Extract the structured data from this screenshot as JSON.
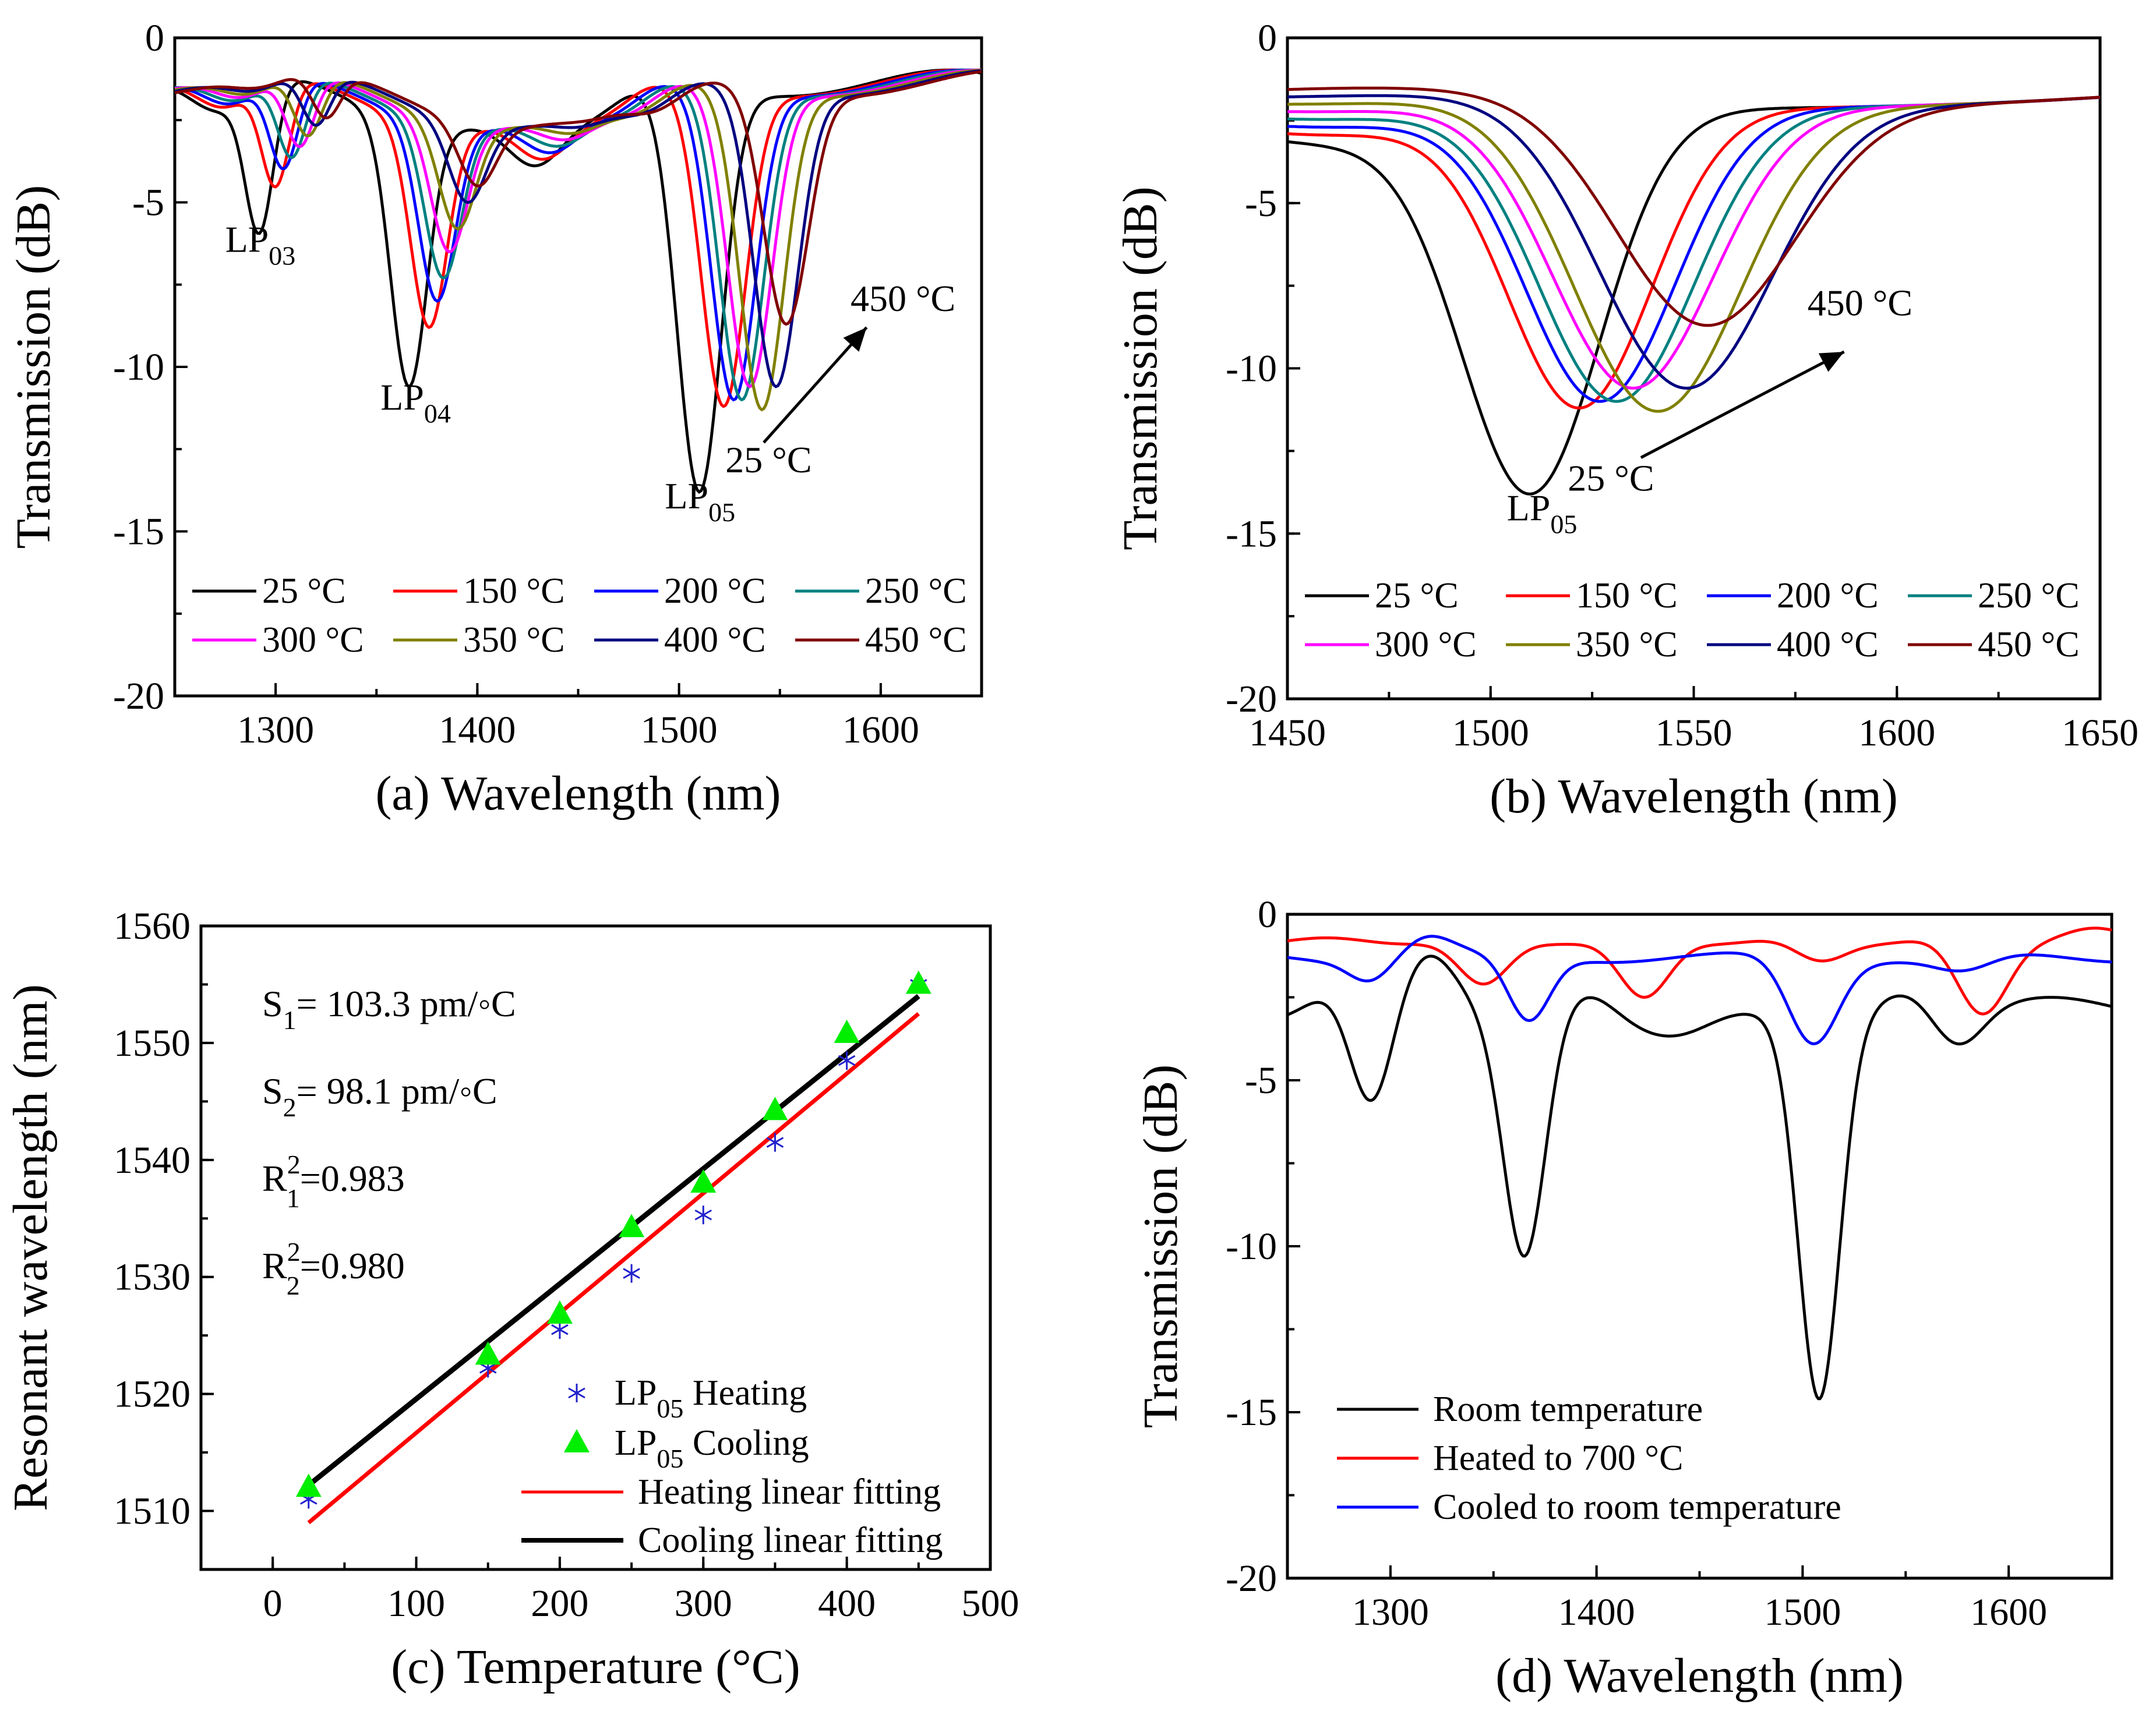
{
  "chart_data": [
    {
      "type": "line",
      "panel": "(a)",
      "xlabel": "(a) Wavelength (nm)",
      "ylabel": "Transmission (dB)",
      "xlim": [
        1250,
        1650
      ],
      "ylim": [
        -20,
        0
      ],
      "xticks": [
        1300,
        1400,
        1500,
        1600
      ],
      "yticks": [
        0,
        -5,
        -10,
        -15,
        -20
      ],
      "ytick_labels": [
        "0",
        "-5",
        "-10",
        "-15",
        "-20"
      ],
      "legend": "bottom, 2 rows x 4 columns",
      "series": [
        {
          "name": "25 °C",
          "color": "#000000",
          "dips": [
            [
              1292,
              -5.5
            ],
            [
              1366,
              -10.6
            ],
            [
              1510,
              -13.8
            ]
          ]
        },
        {
          "name": "150 °C",
          "color": "#ff0000",
          "dips": [
            [
              1300,
              -4.3
            ],
            [
              1376,
              -8.8
            ],
            [
              1522,
              -11.2
            ]
          ]
        },
        {
          "name": "200 °C",
          "color": "#0000ff",
          "dips": [
            [
              1304,
              -3.8
            ],
            [
              1380,
              -8.0
            ],
            [
              1527,
              -11.0
            ]
          ]
        },
        {
          "name": "250 °C",
          "color": "#008080",
          "dips": [
            [
              1308,
              -3.5
            ],
            [
              1383,
              -7.3
            ],
            [
              1531,
              -11.0
            ]
          ]
        },
        {
          "name": "300 °C",
          "color": "#ff00ff",
          "dips": [
            [
              1312,
              -3.2
            ],
            [
              1386,
              -6.5
            ],
            [
              1535,
              -10.6
            ]
          ]
        },
        {
          "name": "350 °C",
          "color": "#808000",
          "dips": [
            [
              1316,
              -2.9
            ],
            [
              1390,
              -5.8
            ],
            [
              1541,
              -11.3
            ]
          ]
        },
        {
          "name": "400 °C",
          "color": "#000080",
          "dips": [
            [
              1320,
              -2.6
            ],
            [
              1395,
              -5.0
            ],
            [
              1548,
              -10.6
            ]
          ]
        },
        {
          "name": "450 °C",
          "color": "#800000",
          "dips": [
            [
              1325,
              -2.4
            ],
            [
              1400,
              -4.5
            ],
            [
              1553,
              -8.7
            ]
          ]
        }
      ],
      "annotations": [
        {
          "text": "LP",
          "sub": "03",
          "x": 1275,
          "y": -6.4
        },
        {
          "text": "LP",
          "sub": "04",
          "x": 1352,
          "y": -11.3
        },
        {
          "text": "LP",
          "sub": "05",
          "x": 1493,
          "y": -14.3
        },
        {
          "text": "25 °C",
          "x": 1528,
          "y": -13.2
        },
        {
          "text": "450 °C",
          "x": 1585,
          "y": -8.3
        }
      ]
    },
    {
      "type": "line",
      "panel": "(b)",
      "xlabel": "(b) Wavelength (nm)",
      "ylabel": "Transmission (dB)",
      "xlim": [
        1450,
        1650
      ],
      "ylim": [
        -20,
        0
      ],
      "xticks": [
        1450,
        1500,
        1550,
        1600,
        1650
      ],
      "yticks": [
        0,
        -5,
        -10,
        -15,
        -20
      ],
      "ytick_labels": [
        "0",
        "-5",
        "-10",
        "-15",
        "-20"
      ],
      "legend": "bottom, 2 rows x 4 columns",
      "series": [
        {
          "name": "25 °C",
          "color": "#000000",
          "dip": [
            1510,
            -13.8
          ]
        },
        {
          "name": "150 °C",
          "color": "#ff0000",
          "dip": [
            1522,
            -11.2
          ]
        },
        {
          "name": "200 °C",
          "color": "#0000ff",
          "dip": [
            1527,
            -11.0
          ]
        },
        {
          "name": "250 °C",
          "color": "#008080",
          "dip": [
            1531,
            -11.0
          ]
        },
        {
          "name": "300 °C",
          "color": "#ff00ff",
          "dip": [
            1535,
            -10.6
          ]
        },
        {
          "name": "350 °C",
          "color": "#808000",
          "dip": [
            1541,
            -11.3
          ]
        },
        {
          "name": "400 °C",
          "color": "#000080",
          "dip": [
            1548,
            -10.6
          ]
        },
        {
          "name": "450 °C",
          "color": "#800000",
          "dip": [
            1553,
            -8.7
          ]
        }
      ],
      "annotations": [
        {
          "text": "LP",
          "sub": "05",
          "x": 1504,
          "y": -14.6
        },
        {
          "text": "25 °C",
          "x": 1526,
          "y": -13.6
        },
        {
          "text": "450 °C",
          "x": 1578,
          "y": -8.4
        }
      ]
    },
    {
      "type": "scatter",
      "panel": "(c)",
      "xlabel": "(c) Temperature (°C)",
      "ylabel": "Resonant wavelength (nm)",
      "xlim": [
        -50,
        500
      ],
      "ylim": [
        1505,
        1560
      ],
      "xticks": [
        0,
        100,
        200,
        300,
        400,
        500
      ],
      "yticks": [
        1510,
        1520,
        1530,
        1540,
        1550,
        1560
      ],
      "legend": "bottom-right",
      "series": [
        {
          "name": "LP05 Heating",
          "label": "LP",
          "sub": "05",
          "suffix": " Heating",
          "marker": "asterisk",
          "color": "#2222cc",
          "x": [
            25,
            150,
            200,
            250,
            300,
            350,
            400,
            450
          ],
          "y": [
            1511,
            1522.2,
            1525.5,
            1530.3,
            1535.3,
            1541.5,
            1548.5,
            1555
          ]
        },
        {
          "name": "LP05 Cooling",
          "label": "LP",
          "sub": "05",
          "suffix": " Cooling",
          "marker": "triangle",
          "color": "#00ee00",
          "x": [
            25,
            150,
            200,
            250,
            300,
            350,
            400,
            450
          ],
          "y": [
            1512,
            1523.3,
            1526.8,
            1534.2,
            1538,
            1544.2,
            1550.8,
            1555
          ]
        },
        {
          "name": "Heating linear fitting",
          "type": "line",
          "color": "#ff0000",
          "x": [
            25,
            450
          ],
          "y": [
            1509,
            1552.5
          ]
        },
        {
          "name": "Cooling linear fitting",
          "type": "line",
          "color": "#000000",
          "x": [
            25,
            450
          ],
          "y": [
            1512.2,
            1554
          ]
        }
      ],
      "annotations": [
        {
          "text": "S",
          "sub": "1",
          "rest": "= 103.3 pm/◦C"
        },
        {
          "text": "S",
          "sub": "2",
          "rest": "= 98.1 pm/◦C"
        },
        {
          "text": "R",
          "sub": "1",
          "sup": "2",
          "rest": "=0.983"
        },
        {
          "text": "R",
          "sub": "2",
          "sup": "2",
          "rest": "=0.980"
        }
      ]
    },
    {
      "type": "line",
      "panel": "(d)",
      "xlabel": "(d) Wavelength (nm)",
      "ylabel": "Transmission (dB)",
      "xlim": [
        1250,
        1650
      ],
      "ylim": [
        -20,
        0
      ],
      "xticks": [
        1300,
        1400,
        1500,
        1600
      ],
      "yticks": [
        0,
        -5,
        -10,
        -15,
        -20
      ],
      "ytick_labels": [
        "0",
        "-5",
        "-10",
        "-15",
        "-20"
      ],
      "legend": "bottom-left",
      "series": [
        {
          "name": "Room temperature",
          "color": "#000000",
          "dips": [
            [
              1291,
              -5.6
            ],
            [
              1365,
              -10.3
            ],
            [
              1508,
              -14.6
            ]
          ]
        },
        {
          "name": "Heated to 700 °C",
          "color": "#ff0000",
          "dips": [
            [
              1345,
              -2.1
            ],
            [
              1423,
              -2.5
            ],
            [
              1508,
              -1.4
            ],
            [
              1587,
              -3.0
            ]
          ]
        },
        {
          "name": "Cooled to room temperature",
          "color": "#0000ff",
          "dips": [
            [
              1290,
              -2.0
            ],
            [
              1367,
              -3.2
            ],
            [
              1505,
              -3.9
            ],
            [
              1578,
              -1.7
            ]
          ]
        }
      ]
    }
  ]
}
